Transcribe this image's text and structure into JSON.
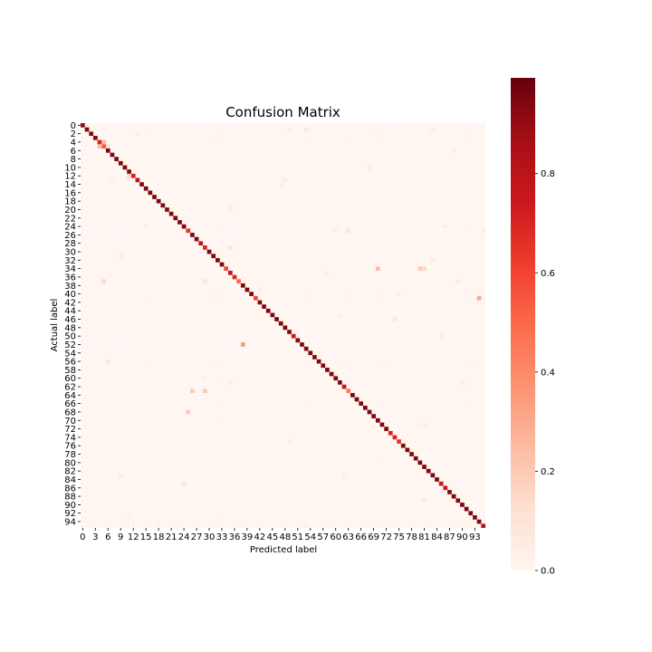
{
  "chart_data": {
    "type": "heatmap",
    "title": "Confusion Matrix",
    "xlabel": "Predicted label",
    "ylabel": "Actual label",
    "n_classes": 96,
    "x_tick_labels": [
      "0",
      "3",
      "6",
      "9",
      "12",
      "15",
      "18",
      "21",
      "24",
      "27",
      "30",
      "33",
      "36",
      "39",
      "42",
      "45",
      "48",
      "51",
      "54",
      "57",
      "60",
      "63",
      "66",
      "69",
      "72",
      "75",
      "78",
      "81",
      "84",
      "87",
      "90",
      "93"
    ],
    "y_tick_labels": [
      "0",
      "2",
      "4",
      "6",
      "8",
      "10",
      "12",
      "14",
      "16",
      "18",
      "20",
      "22",
      "24",
      "26",
      "28",
      "30",
      "32",
      "34",
      "36",
      "38",
      "40",
      "42",
      "44",
      "46",
      "48",
      "50",
      "52",
      "54",
      "56",
      "58",
      "60",
      "62",
      "64",
      "66",
      "68",
      "70",
      "72",
      "74",
      "76",
      "78",
      "80",
      "82",
      "84",
      "86",
      "88",
      "90",
      "92",
      "94"
    ],
    "colormap": "Reds",
    "value_range": [
      0,
      1
    ],
    "colorbar_ticks": [
      "0.0",
      "0.2",
      "0.4",
      "0.6",
      "0.8"
    ],
    "colors": {
      "low": "#fff5f0",
      "high": "#67000d"
    },
    "diagonal_default": 0.95,
    "diagonal_overrides": [
      [
        0,
        0.9
      ],
      [
        4,
        0.7
      ],
      [
        5,
        0.55
      ],
      [
        12,
        0.72
      ],
      [
        13,
        0.8
      ],
      [
        25,
        0.65
      ],
      [
        28,
        0.8
      ],
      [
        29,
        0.7
      ],
      [
        34,
        0.6
      ],
      [
        35,
        0.8
      ],
      [
        36,
        0.7
      ],
      [
        37,
        0.5
      ],
      [
        41,
        0.6
      ],
      [
        50,
        0.75
      ],
      [
        62,
        0.75
      ],
      [
        63,
        0.45
      ],
      [
        73,
        0.7
      ],
      [
        74,
        0.7
      ],
      [
        75,
        0.65
      ],
      [
        85,
        0.75
      ],
      [
        86,
        0.75
      ],
      [
        95,
        0.8
      ]
    ],
    "off_diagonal": [
      [
        4,
        5,
        0.25
      ],
      [
        5,
        4,
        0.25
      ],
      [
        5,
        6,
        0.12
      ],
      [
        2,
        13,
        0.05
      ],
      [
        1,
        49,
        0.04
      ],
      [
        1,
        53,
        0.08
      ],
      [
        1,
        83,
        0.05
      ],
      [
        6,
        88,
        0.05
      ],
      [
        10,
        68,
        0.06
      ],
      [
        12,
        11,
        0.15
      ],
      [
        13,
        48,
        0.06
      ],
      [
        14,
        47,
        0.04
      ],
      [
        13,
        7,
        0.03
      ],
      [
        19,
        35,
        0.05
      ],
      [
        20,
        35,
        0.05
      ],
      [
        24,
        15,
        0.04
      ],
      [
        24,
        86,
        0.05
      ],
      [
        25,
        63,
        0.12
      ],
      [
        25,
        60,
        0.05
      ],
      [
        25,
        95,
        0.05
      ],
      [
        29,
        35,
        0.1
      ],
      [
        31,
        9,
        0.06
      ],
      [
        32,
        83,
        0.06
      ],
      [
        34,
        70,
        0.25
      ],
      [
        34,
        80,
        0.2
      ],
      [
        34,
        81,
        0.15
      ],
      [
        35,
        58,
        0.04
      ],
      [
        37,
        5,
        0.15
      ],
      [
        37,
        29,
        0.1
      ],
      [
        37,
        89,
        0.08
      ],
      [
        39,
        42,
        0.06
      ],
      [
        40,
        75,
        0.06
      ],
      [
        41,
        94,
        0.3
      ],
      [
        45,
        61,
        0.05
      ],
      [
        46,
        74,
        0.08
      ],
      [
        50,
        85,
        0.06
      ],
      [
        52,
        38,
        0.35
      ],
      [
        55,
        56,
        0.04
      ],
      [
        56,
        6,
        0.1
      ],
      [
        60,
        29,
        0.05
      ],
      [
        61,
        35,
        0.05
      ],
      [
        61,
        90,
        0.04
      ],
      [
        63,
        26,
        0.2
      ],
      [
        63,
        29,
        0.2
      ],
      [
        68,
        25,
        0.2
      ],
      [
        71,
        81,
        0.05
      ],
      [
        75,
        49,
        0.04
      ],
      [
        83,
        9,
        0.06
      ],
      [
        83,
        62,
        0.04
      ],
      [
        85,
        24,
        0.1
      ],
      [
        89,
        81,
        0.08
      ],
      [
        93,
        11,
        0.03
      ],
      [
        95,
        53,
        0.04
      ]
    ]
  }
}
